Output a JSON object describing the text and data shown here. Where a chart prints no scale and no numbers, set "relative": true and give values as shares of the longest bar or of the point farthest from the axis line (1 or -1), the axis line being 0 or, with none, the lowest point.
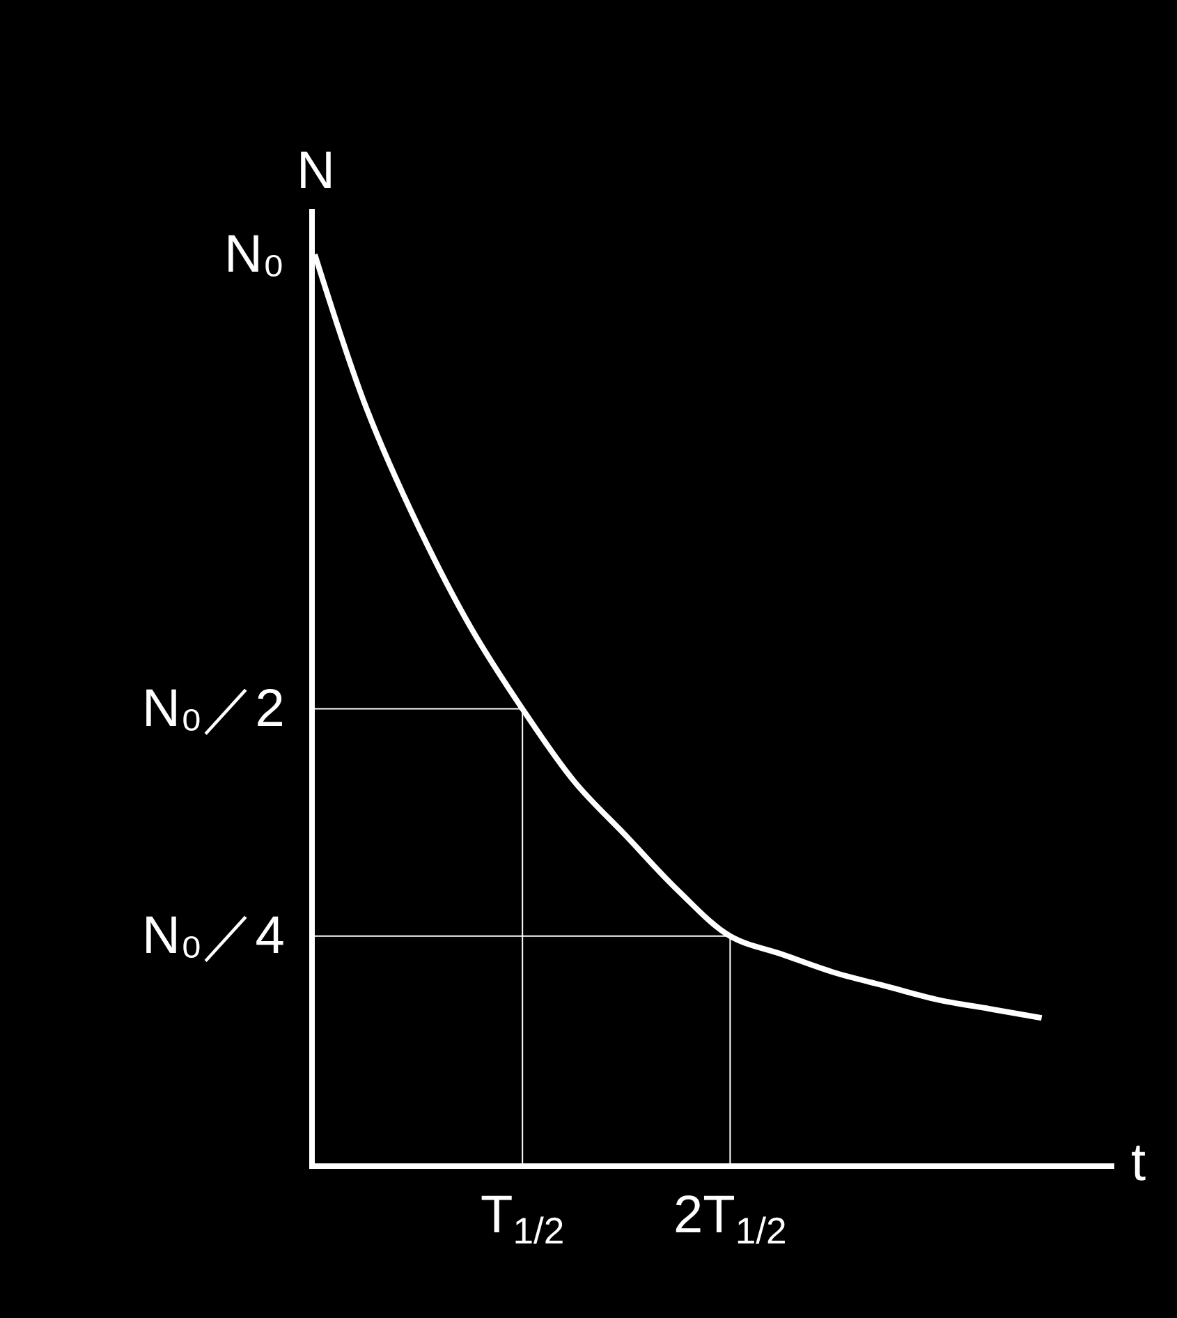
{
  "chart_data": {
    "type": "line",
    "xlabel": "t",
    "ylabel": "N",
    "relative": true,
    "categories": [
      null,
      null,
      null,
      null,
      "T$_{1/2}$",
      null,
      null,
      null,
      "2T$_{1/2}$",
      null,
      null,
      null,
      null,
      null,
      null
    ],
    "series": [
      {
        "color": "#ffffff",
        "values": [
          1,
          0.83,
          0.7,
          0.59,
          0.5,
          0.42,
          0.36,
          0.3,
          0.25,
          0.23,
          0.21,
          0.195,
          0.18,
          0.17,
          0.16
        ]
      },
      {
        "color": "#ffffff",
        "values": [
          0.5,
          0.5,
          0.5,
          0.5,
          0.5,
          null,
          null,
          null,
          null,
          null,
          null,
          null,
          null,
          null,
          null
        ]
      },
      {
        "color": "#ffffff",
        "x": [
          "T$_{1/2}$",
          "T$_{1/2}$"
        ],
        "values": [
          0.5,
          0
        ]
      },
      {
        "color": "#ffffff",
        "values": [
          0.25,
          0.25,
          0.25,
          0.25,
          0.25,
          0.25,
          0.25,
          0.25,
          0.25,
          null,
          null,
          null,
          null,
          null,
          null
        ]
      },
      {
        "color": "#ffffff",
        "x": [
          "2T$_{1/2}$",
          "2T$_{1/2}$"
        ],
        "values": [
          0.25,
          0
        ]
      }
    ],
    "annotations": [
      "N₀",
      "N₀／2",
      "N₀／4"
    ],
    "grid": false
  }
}
